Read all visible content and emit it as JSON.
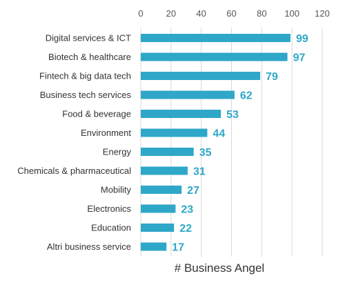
{
  "chart_data": {
    "type": "bar",
    "orientation": "horizontal",
    "categories": [
      "Digital services & ICT",
      "Biotech & healthcare",
      "Fintech & big data tech",
      "Business tech services",
      "Food & beverage",
      "Environment",
      "Energy",
      "Chemicals & pharmaceutical",
      "Mobility",
      "Electronics",
      "Education",
      "Altri business service"
    ],
    "values": [
      99,
      97,
      79,
      62,
      53,
      44,
      35,
      31,
      27,
      23,
      22,
      17
    ],
    "xlabel": "# Business Angel",
    "xlim": [
      0,
      120
    ],
    "xticks": [
      0,
      20,
      40,
      60,
      80,
      100,
      120
    ],
    "x_axis_position": "top",
    "grid": true,
    "bar_color": "#2ea7c8",
    "value_label_color": "#2ea7c8"
  }
}
